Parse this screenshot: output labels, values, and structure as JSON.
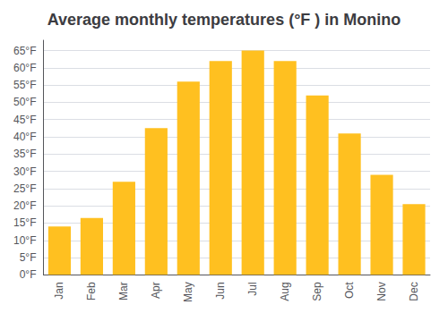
{
  "chart_data": {
    "type": "bar",
    "title": "Average monthly temperatures (°F ) in Monino",
    "categories": [
      "Jan",
      "Feb",
      "Mar",
      "Apr",
      "May",
      "Jun",
      "Jul",
      "Aug",
      "Sep",
      "Oct",
      "Nov",
      "Dec"
    ],
    "values": [
      14,
      16.5,
      27,
      42.5,
      56,
      62,
      65,
      62,
      52,
      41,
      29,
      20.5
    ],
    "color": "#FFC020",
    "ylim": [
      0,
      68
    ],
    "yticks": [
      {
        "value": 0,
        "label": "0°F"
      },
      {
        "value": 5,
        "label": "5°F"
      },
      {
        "value": 10,
        "label": "10°F"
      },
      {
        "value": 15,
        "label": "15°F"
      },
      {
        "value": 20,
        "label": "20°F"
      },
      {
        "value": 25,
        "label": "25°F"
      },
      {
        "value": 30,
        "label": "30°F"
      },
      {
        "value": 35,
        "label": "35°F"
      },
      {
        "value": 40,
        "label": "40°F"
      },
      {
        "value": 45,
        "label": "45°F"
      },
      {
        "value": 50,
        "label": "50°F"
      },
      {
        "value": 55,
        "label": "55°F"
      },
      {
        "value": 60,
        "label": "60°F"
      },
      {
        "value": 65,
        "label": "65°F"
      }
    ],
    "grid": true
  }
}
